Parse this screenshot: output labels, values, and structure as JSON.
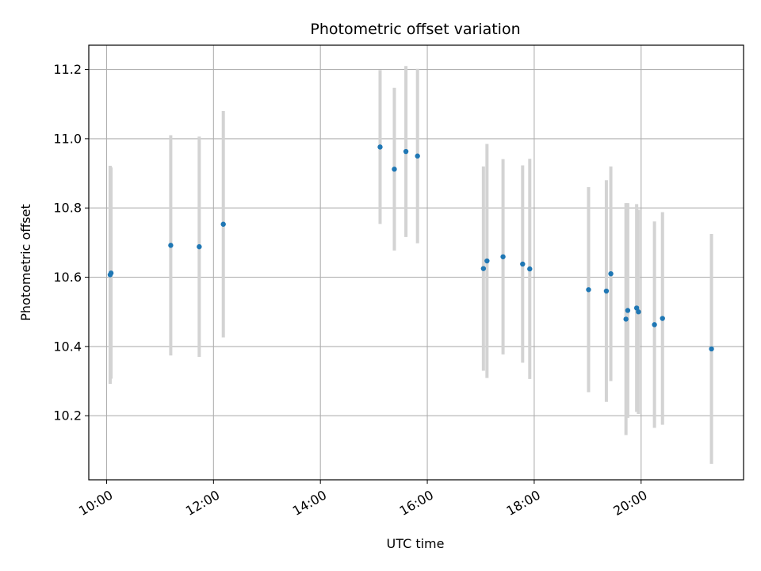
{
  "chart_data": {
    "type": "scatter",
    "title": "Photometric offset variation",
    "xlabel": "UTC time",
    "ylabel": "Photometric offset",
    "xlim": [
      "09:40",
      "21:55"
    ],
    "ylim": [
      10.015,
      11.27
    ],
    "x_ticks": [
      "10:00",
      "12:00",
      "14:00",
      "16:00",
      "18:00",
      "20:00"
    ],
    "y_ticks": [
      "10.2",
      "10.4",
      "10.6",
      "10.8",
      "11.0",
      "11.2"
    ],
    "grid": true,
    "colors": {
      "points": "#1f77b4",
      "errorbars": "#d3d3d3",
      "grid": "#b0b0b0"
    },
    "points": [
      {
        "x": "10:04",
        "y": 10.607,
        "yerr": 0.315
      },
      {
        "x": "10:05",
        "y": 10.612,
        "yerr": 0.305
      },
      {
        "x": "11:12",
        "y": 10.692,
        "yerr": 0.318
      },
      {
        "x": "11:44",
        "y": 10.688,
        "yerr": 0.318
      },
      {
        "x": "12:11",
        "y": 10.753,
        "yerr": 0.327
      },
      {
        "x": "15:07",
        "y": 10.976,
        "yerr": 0.222
      },
      {
        "x": "15:23",
        "y": 10.912,
        "yerr": 0.235
      },
      {
        "x": "15:36",
        "y": 10.963,
        "yerr": 0.247
      },
      {
        "x": "15:49",
        "y": 10.95,
        "yerr": 0.252
      },
      {
        "x": "17:03",
        "y": 10.625,
        "yerr": 0.295
      },
      {
        "x": "17:07",
        "y": 10.647,
        "yerr": 0.338
      },
      {
        "x": "17:25",
        "y": 10.659,
        "yerr": 0.282
      },
      {
        "x": "17:47",
        "y": 10.638,
        "yerr": 0.285
      },
      {
        "x": "17:55",
        "y": 10.624,
        "yerr": 0.318
      },
      {
        "x": "19:01",
        "y": 10.564,
        "yerr": 0.296
      },
      {
        "x": "19:21",
        "y": 10.56,
        "yerr": 0.32
      },
      {
        "x": "19:26",
        "y": 10.61,
        "yerr": 0.31
      },
      {
        "x": "19:43",
        "y": 10.479,
        "yerr": 0.335
      },
      {
        "x": "19:45",
        "y": 10.504,
        "yerr": 0.31
      },
      {
        "x": "19:55",
        "y": 10.511,
        "yerr": 0.3
      },
      {
        "x": "19:57",
        "y": 10.5,
        "yerr": 0.295
      },
      {
        "x": "20:15",
        "y": 10.463,
        "yerr": 0.298
      },
      {
        "x": "20:24",
        "y": 10.481,
        "yerr": 0.307
      },
      {
        "x": "21:19",
        "y": 10.393,
        "yerr": 0.332
      }
    ]
  }
}
